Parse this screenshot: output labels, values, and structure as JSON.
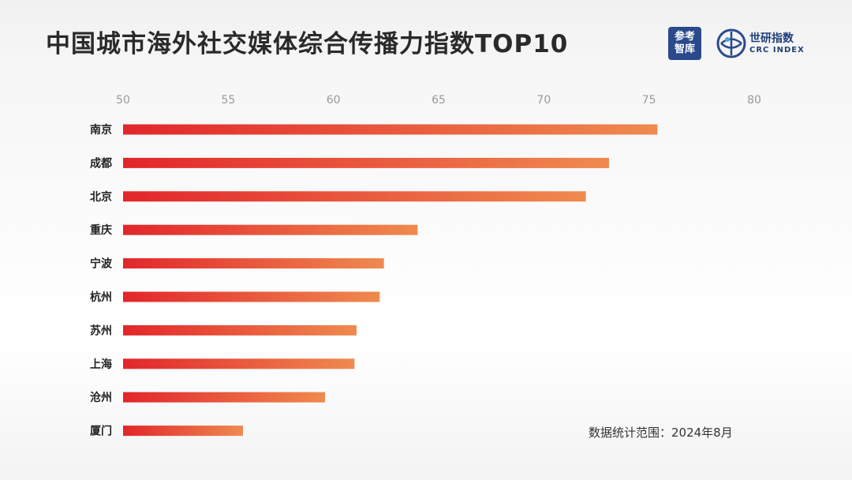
{
  "header": {
    "title": "中国城市海外社交媒体综合传播力指数TOP10",
    "logo_left_lines": [
      "参考",
      "智库"
    ],
    "logo_right_cn": "世研指数",
    "logo_right_en": "CRC INDEX"
  },
  "footnote": "数据统计范围：2024年8月",
  "colors": {
    "bar_start": "#e2262b",
    "bar_end": "#ef8a4f",
    "axis_text": "#9a9a9a",
    "label_text": "#222222",
    "logo_blue": "#2b4a8c"
  },
  "chart_data": {
    "type": "bar",
    "orientation": "horizontal",
    "title": "中国城市海外社交媒体综合传播力指数TOP10",
    "categories": [
      "南京",
      "成都",
      "北京",
      "重庆",
      "宁波",
      "杭州",
      "苏州",
      "上海",
      "沧州",
      "厦门"
    ],
    "values": [
      75.4,
      73.1,
      72.0,
      64.0,
      62.4,
      62.2,
      61.1,
      61.0,
      59.6,
      55.7
    ],
    "xlim": [
      50,
      80
    ],
    "xticks": [
      50,
      55,
      60,
      65,
      70,
      75,
      80
    ],
    "axis_position": "top",
    "grid": false,
    "legend": "none"
  }
}
